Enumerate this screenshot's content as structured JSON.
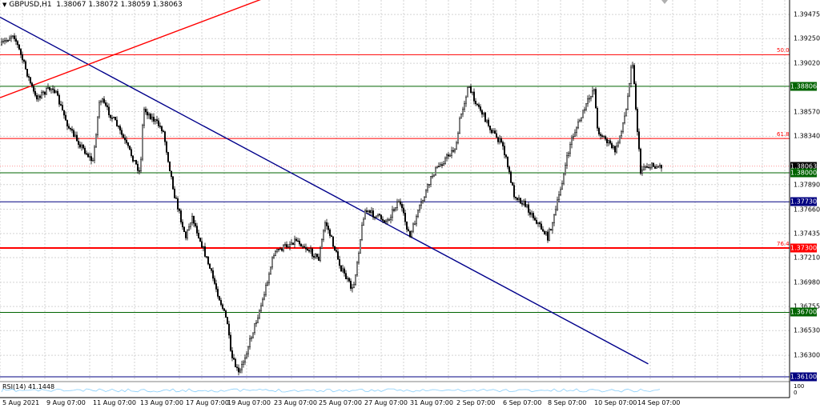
{
  "header": {
    "menu_icon": "triangle-down-icon",
    "symbol": "GBPUSD,H1",
    "ohlc": "1.38067 1.38072 1.38059 1.38063"
  },
  "rsi": {
    "label": "RSI(14) 41.1448",
    "levels": [
      "100",
      "0"
    ]
  },
  "price_axis": {
    "ticks": [
      "1.39475",
      "1.39250",
      "1.39020",
      "1.38570",
      "1.38340",
      "1.37890",
      "1.37660",
      "1.37435",
      "1.37210",
      "1.36980",
      "1.36755",
      "1.36530",
      "1.36300"
    ]
  },
  "time_axis": {
    "ticks": [
      "5 Aug 2021",
      "9 Aug 07:00",
      "11 Aug 07:00",
      "13 Aug 07:00",
      "17 Aug 07:00",
      "19 Aug 07:00",
      "23 Aug 07:00",
      "25 Aug 07:00",
      "27 Aug 07:00",
      "31 Aug 07:00",
      "2 Sep 07:00",
      "6 Sep 07:00",
      "8 Sep 07:00",
      "10 Sep 07:00",
      "14 Sep 07:00"
    ]
  },
  "level_boxes": [
    {
      "label": "1.38806",
      "color": "#006400"
    },
    {
      "label": "1.38063",
      "color": "#000000"
    },
    {
      "label": "1.38000",
      "color": "#006400"
    },
    {
      "label": "1.37730",
      "color": "#000080"
    },
    {
      "label": "1.37300",
      "color": "#ff0000"
    },
    {
      "label": "1.36700",
      "color": "#006400"
    },
    {
      "label": "1.36100",
      "color": "#000080"
    }
  ],
  "fib_labels": [
    "50.0",
    "61.8",
    "76.4"
  ],
  "colors": {
    "candles": "#000000",
    "grid": "#d3d3d3",
    "resistance_red": "#ff0000",
    "support_green": "#006400",
    "level_navy": "#000080",
    "trendline_blue": "#00008b",
    "rsi_line": "#87cefa"
  },
  "chart_data": {
    "type": "candlestick",
    "title": "GBPUSD,H1",
    "ylim": [
      1.3607,
      1.3961
    ],
    "horizontal_levels": [
      {
        "value": 1.391,
        "color": "#ff0000",
        "label": "50.0"
      },
      {
        "value": 1.38806,
        "color": "#006400",
        "label": "1.38806"
      },
      {
        "value": 1.3832,
        "color": "#ff0000",
        "label": "61.8"
      },
      {
        "value": 1.38,
        "color": "#006400",
        "label": "1.38000"
      },
      {
        "value": 1.3773,
        "color": "#000080",
        "label": "1.37730"
      },
      {
        "value": 1.373,
        "color": "#ff0000",
        "label": "76.4"
      },
      {
        "value": 1.367,
        "color": "#006400",
        "label": "1.36700"
      },
      {
        "value": 1.361,
        "color": "#000080",
        "label": "1.36100"
      }
    ],
    "trendlines": [
      {
        "color": "#00008b",
        "from": {
          "x": "4 Aug 2021",
          "y": 1.3945
        },
        "to": {
          "x": "15 Sep 2021",
          "y": 1.3622
        }
      },
      {
        "color": "#ff0000",
        "from": {
          "x": "4 Aug 2021",
          "y": 1.387
        },
        "to": {
          "x": "22 Aug 2021",
          "y": 1.3962
        }
      }
    ],
    "close_path": [
      {
        "x": "5 Aug 2021",
        "y": 1.392
      },
      {
        "x": "6 Aug 2021",
        "y": 1.393
      },
      {
        "x": "8 Aug 2021",
        "y": 1.387
      },
      {
        "x": "9 Aug 07:00",
        "y": 1.388
      },
      {
        "x": "10 Aug 2021",
        "y": 1.384
      },
      {
        "x": "11 Aug 2021",
        "y": 1.381
      },
      {
        "x": "11 Aug 07:00",
        "y": 1.387
      },
      {
        "x": "12 Aug 2021",
        "y": 1.3845
      },
      {
        "x": "13 Aug 2021",
        "y": 1.38
      },
      {
        "x": "13 Aug 07:00",
        "y": 1.386
      },
      {
        "x": "15 Aug 2021",
        "y": 1.384
      },
      {
        "x": "16 Aug 2021",
        "y": 1.378
      },
      {
        "x": "17 Aug 2021",
        "y": 1.374
      },
      {
        "x": "17 Aug 07:00",
        "y": 1.376
      },
      {
        "x": "18 Aug 2021",
        "y": 1.372
      },
      {
        "x": "19 Aug 2021",
        "y": 1.366
      },
      {
        "x": "19 Aug 07:00",
        "y": 1.363
      },
      {
        "x": "20 Aug 2021",
        "y": 1.3612
      },
      {
        "x": "22 Aug 2021",
        "y": 1.368
      },
      {
        "x": "23 Aug 2021",
        "y": 1.3725
      },
      {
        "x": "24 Aug 2021",
        "y": 1.3738
      },
      {
        "x": "25 Aug 2021",
        "y": 1.372
      },
      {
        "x": "25 Aug 07:00",
        "y": 1.3755
      },
      {
        "x": "26 Aug 2021",
        "y": 1.371
      },
      {
        "x": "26 Aug 12:00",
        "y": 1.369
      },
      {
        "x": "27 Aug 2021",
        "y": 1.3765
      },
      {
        "x": "29 Aug 2021",
        "y": 1.3755
      },
      {
        "x": "30 Aug 2021",
        "y": 1.3775
      },
      {
        "x": "31 Aug 2021",
        "y": 1.374
      },
      {
        "x": "31 Aug 07:00",
        "y": 1.376
      },
      {
        "x": "1 Sep 2021",
        "y": 1.38
      },
      {
        "x": "2 Sep 2021",
        "y": 1.3825
      },
      {
        "x": "2 Sep 07:00",
        "y": 1.385
      },
      {
        "x": "3 Sep 2021",
        "y": 1.388
      },
      {
        "x": "5 Sep 2021",
        "y": 1.384
      },
      {
        "x": "6 Sep 2021",
        "y": 1.3825
      },
      {
        "x": "6 Sep 12:00",
        "y": 1.378
      },
      {
        "x": "7 Sep 2021",
        "y": 1.377
      },
      {
        "x": "8 Sep 2021",
        "y": 1.374
      },
      {
        "x": "8 Sep 07:00",
        "y": 1.376
      },
      {
        "x": "9 Sep 2021",
        "y": 1.383
      },
      {
        "x": "10 Sep 2021",
        "y": 1.388
      },
      {
        "x": "10 Sep 07:00",
        "y": 1.384
      },
      {
        "x": "12 Sep 2021",
        "y": 1.382
      },
      {
        "x": "13 Sep 2021",
        "y": 1.386
      },
      {
        "x": "13 Sep 12:00",
        "y": 1.391
      },
      {
        "x": "14 Sep 2021",
        "y": 1.384
      },
      {
        "x": "14 Sep 07:00",
        "y": 1.38
      },
      {
        "x": "14 Sep 12:00",
        "y": 1.38063
      }
    ]
  }
}
